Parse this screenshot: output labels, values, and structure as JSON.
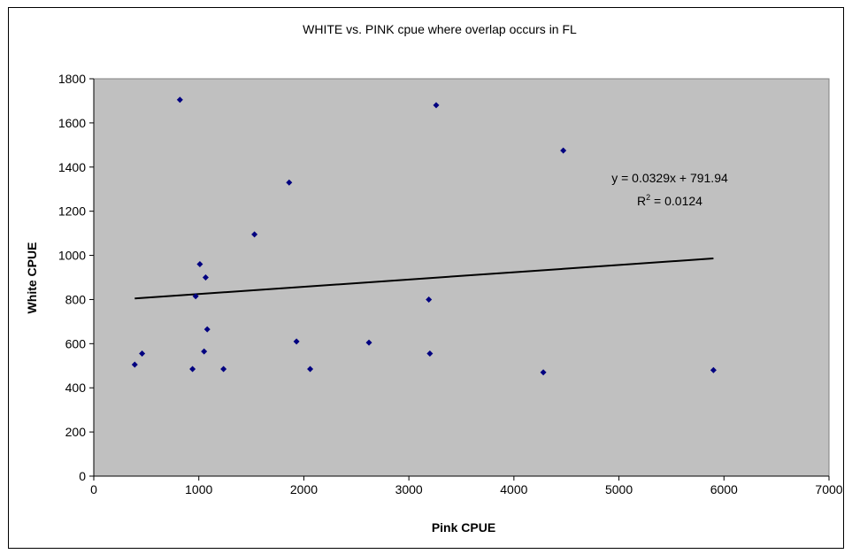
{
  "chart_data": {
    "type": "scatter",
    "title": "WHITE vs. PINK cpue where overlap occurs in FL",
    "xlabel": "Pink CPUE",
    "ylabel": "White CPUE",
    "xlim": [
      0,
      7000
    ],
    "ylim": [
      0,
      1800
    ],
    "xticks": [
      0,
      1000,
      2000,
      3000,
      4000,
      5000,
      6000,
      7000
    ],
    "yticks": [
      0,
      200,
      400,
      600,
      800,
      1000,
      1200,
      1400,
      1600,
      1800
    ],
    "grid": false,
    "legend": "none",
    "plot_background": "#c0c0c0",
    "marker_color": "#000080",
    "trendline_color": "#000000",
    "points": [
      {
        "x": 390,
        "y": 505
      },
      {
        "x": 460,
        "y": 555
      },
      {
        "x": 820,
        "y": 1705
      },
      {
        "x": 940,
        "y": 485
      },
      {
        "x": 970,
        "y": 815
      },
      {
        "x": 1010,
        "y": 960
      },
      {
        "x": 1050,
        "y": 565
      },
      {
        "x": 1065,
        "y": 900
      },
      {
        "x": 1080,
        "y": 665
      },
      {
        "x": 1235,
        "y": 485
      },
      {
        "x": 1530,
        "y": 1095
      },
      {
        "x": 1860,
        "y": 1330
      },
      {
        "x": 1930,
        "y": 610
      },
      {
        "x": 2060,
        "y": 485
      },
      {
        "x": 2620,
        "y": 605
      },
      {
        "x": 3190,
        "y": 800
      },
      {
        "x": 3200,
        "y": 555
      },
      {
        "x": 3260,
        "y": 1680
      },
      {
        "x": 4280,
        "y": 470
      },
      {
        "x": 4470,
        "y": 1475
      },
      {
        "x": 5900,
        "y": 480
      }
    ],
    "trendline": {
      "slope": 0.0329,
      "intercept": 791.94,
      "x_start": 390,
      "x_end": 5900,
      "equation": "y = 0.0329x + 791.94",
      "r2_prefix": "R",
      "r2_sup": "2",
      "r2_value": " = 0.0124"
    }
  }
}
